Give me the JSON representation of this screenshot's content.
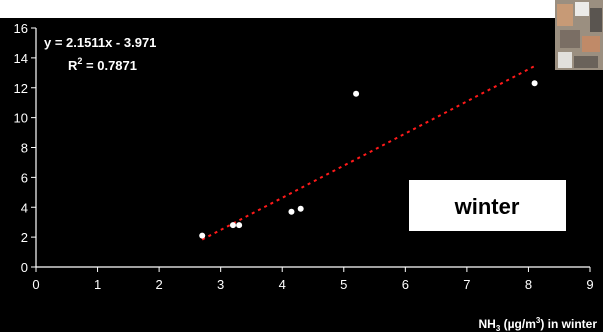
{
  "chart_data": {
    "type": "scatter",
    "title": "",
    "xlabel": {
      "prefix": "NH",
      "sub": "3",
      "middle": " (µg/m",
      "sup": "3",
      "suffix": ") in winter"
    },
    "ylabel": "",
    "xlim": [
      0,
      9
    ],
    "ylim": [
      0,
      16
    ],
    "x_ticks": [
      0,
      1,
      2,
      3,
      4,
      5,
      6,
      7,
      8,
      9
    ],
    "y_ticks": [
      0,
      2,
      4,
      6,
      8,
      10,
      12,
      14,
      16
    ],
    "points": [
      {
        "x": 2.7,
        "y": 2.1
      },
      {
        "x": 3.2,
        "y": 2.8
      },
      {
        "x": 3.3,
        "y": 2.8
      },
      {
        "x": 4.15,
        "y": 3.7
      },
      {
        "x": 4.3,
        "y": 3.9
      },
      {
        "x": 5.2,
        "y": 11.6
      },
      {
        "x": 8.1,
        "y": 12.3
      }
    ],
    "trendline": {
      "slope": 2.1511,
      "intercept": -3.971,
      "x_range": [
        2.7,
        8.1
      ],
      "color": "#ff1a1a",
      "style": "dotted"
    },
    "equation_label": "y = 2.1511x - 3.971",
    "r2_label": {
      "prefix": "R",
      "sup": "2",
      "suffix": " = 0.7871"
    },
    "legend": "none",
    "grid": false,
    "annotation_box": "winter",
    "colors": {
      "background": "#000000",
      "points": "#ffffff",
      "axes": "#ffffff",
      "box": "#ffffff"
    }
  },
  "photo_inset": "aerial city photo thumbnail"
}
